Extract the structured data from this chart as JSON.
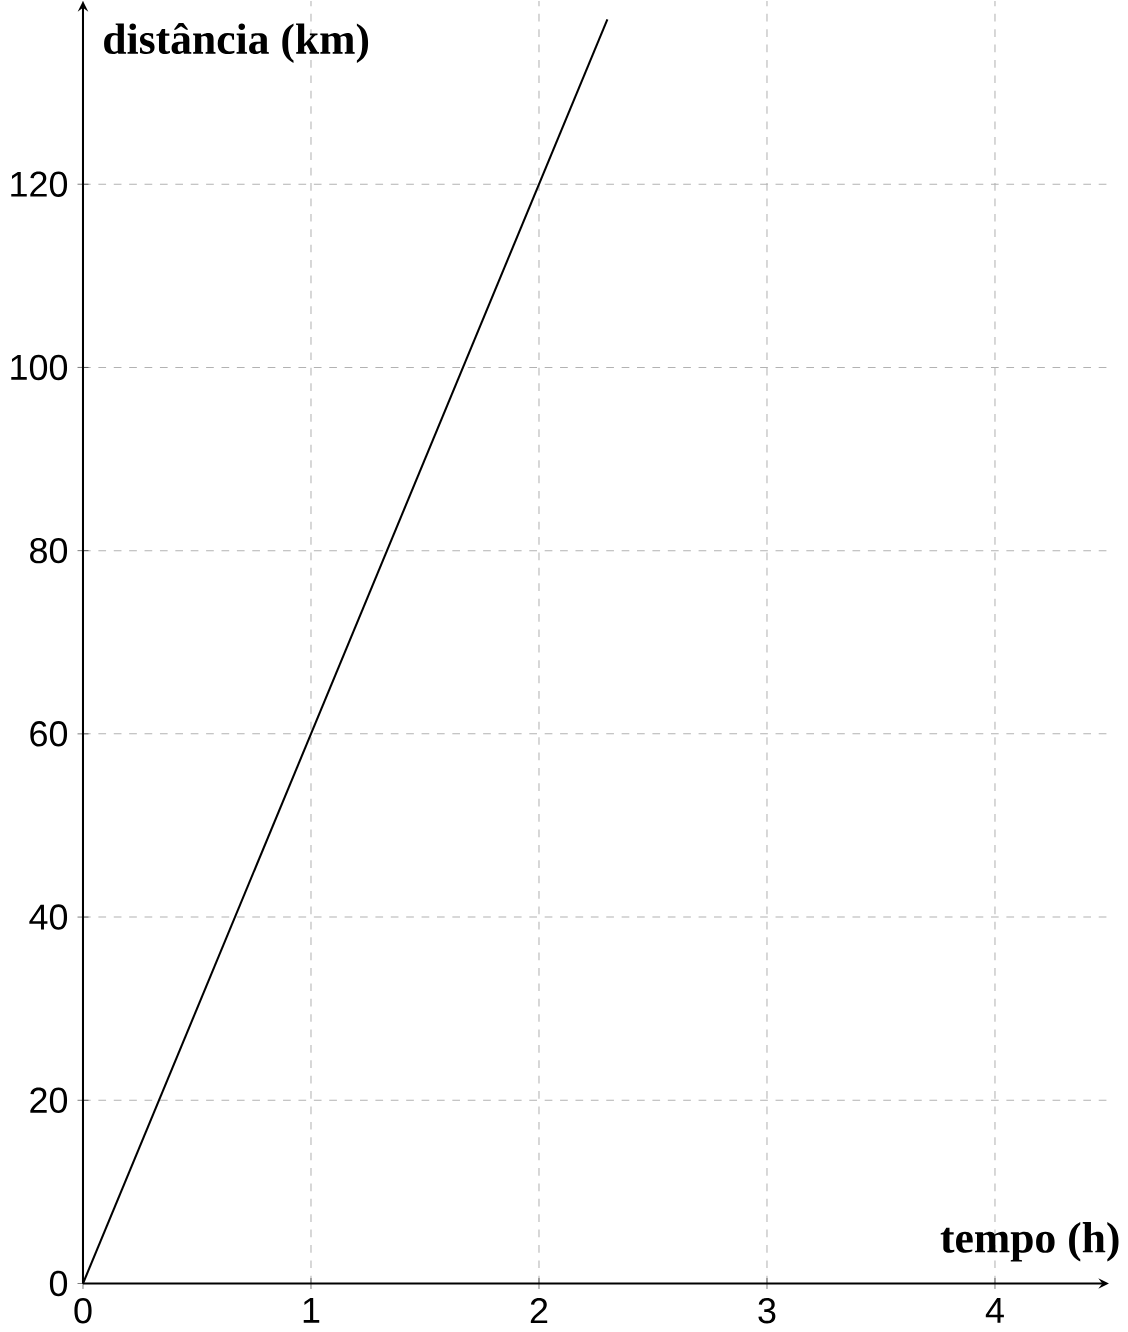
{
  "chart_data": {
    "type": "line",
    "xlabel": "tempo **(h)**",
    "ylabel": "distância **(km)**",
    "x": [
      0,
      2.3
    ],
    "values": [
      0,
      138
    ],
    "color": "#000000",
    "xlim": [
      0,
      4.5
    ],
    "ylim": [
      0,
      140
    ],
    "xticks": [
      0,
      1,
      2,
      3,
      4
    ],
    "yticks": [
      0,
      20,
      40,
      60,
      80,
      100,
      120
    ],
    "grid": true
  }
}
